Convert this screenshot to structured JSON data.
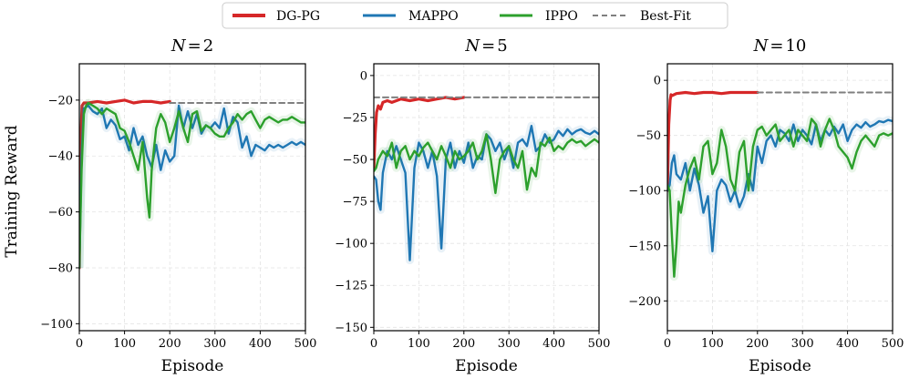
{
  "chart_data": {
    "type": "line",
    "ylabel": "Training Reward",
    "xlabel": "Episode",
    "legend": [
      {
        "name": "DG-PG",
        "color": "#d62728",
        "style": "solid"
      },
      {
        "name": "MAPPO",
        "color": "#1f77b4",
        "style": "solid"
      },
      {
        "name": "IPPO",
        "color": "#2ca02c",
        "style": "solid"
      },
      {
        "name": "Best-Fit",
        "color": "#7f7f7f",
        "style": "dashed"
      }
    ],
    "panels": [
      {
        "title": "N = 2",
        "title_var": "N",
        "title_op": "=",
        "title_num": "2",
        "xlim": [
          0,
          500
        ],
        "ylim": [
          -102.5,
          -7
        ],
        "xticks": [
          0,
          100,
          200,
          300,
          400,
          500
        ],
        "yticks": [
          -100,
          -80,
          -60,
          -40,
          -20
        ],
        "grid": true,
        "series": [
          {
            "name": "DG-PG",
            "x": [
              0,
              3,
              6,
              10,
              20,
              40,
              60,
              80,
              100,
              120,
              140,
              160,
              180,
              200
            ],
            "y": [
              -80,
              -35,
              -22,
              -21,
              -21,
              -20.5,
              -21,
              -20.5,
              -20,
              -21,
              -20.5,
              -20.5,
              -21,
              -20.5
            ]
          },
          {
            "name": "MAPPO",
            "x": [
              0,
              5,
              10,
              20,
              30,
              40,
              50,
              60,
              70,
              80,
              90,
              100,
              110,
              120,
              130,
              140,
              150,
              160,
              170,
              180,
              190,
              200,
              210,
              220,
              230,
              240,
              250,
              260,
              270,
              280,
              290,
              300,
              310,
              320,
              330,
              340,
              350,
              360,
              370,
              380,
              390,
              400,
              410,
              420,
              430,
              440,
              450,
              460,
              470,
              480,
              490,
              500
            ],
            "y": [
              -80,
              -40,
              -23,
              -22,
              -24,
              -25,
              -23,
              -30,
              -27,
              -29,
              -34,
              -33,
              -38,
              -30,
              -36,
              -33,
              -40,
              -44,
              -36,
              -45,
              -38,
              -42,
              -40,
              -22,
              -30,
              -24,
              -30,
              -25,
              -32,
              -29,
              -30,
              -28,
              -30,
              -23,
              -32,
              -26,
              -28,
              -37,
              -33,
              -40,
              -36,
              -37,
              -38,
              -36,
              -37,
              -36,
              -37,
              -36,
              -35,
              -36,
              -35,
              -36
            ]
          },
          {
            "name": "IPPO",
            "x": [
              0,
              5,
              10,
              15,
              20,
              30,
              40,
              50,
              60,
              70,
              80,
              90,
              100,
              110,
              120,
              130,
              140,
              150,
              155,
              160,
              170,
              180,
              190,
              200,
              210,
              220,
              230,
              240,
              250,
              260,
              270,
              280,
              290,
              300,
              310,
              320,
              330,
              340,
              350,
              360,
              370,
              380,
              390,
              400,
              410,
              420,
              430,
              440,
              450,
              460,
              470,
              480,
              490,
              500
            ],
            "y": [
              -80,
              -45,
              -25,
              -22,
              -21,
              -22,
              -23,
              -25,
              -23,
              -24,
              -25,
              -30,
              -31,
              -35,
              -40,
              -45,
              -35,
              -55,
              -62,
              -45,
              -30,
              -25,
              -28,
              -35,
              -30,
              -24,
              -30,
              -35,
              -25,
              -24,
              -31,
              -29,
              -30,
              -32,
              -33,
              -33,
              -30,
              -28,
              -25,
              -27,
              -25,
              -24,
              -27,
              -30,
              -27,
              -26,
              -27,
              -28,
              -27,
              -27,
              -26,
              -27,
              -28,
              -28
            ]
          },
          {
            "name": "Best-Fit",
            "x": [
              200,
              500
            ],
            "y": [
              -21,
              -21
            ]
          }
        ]
      },
      {
        "title": "N = 5",
        "title_var": "N",
        "title_op": "=",
        "title_num": "5",
        "xlim": [
          0,
          500
        ],
        "ylim": [
          -152,
          7
        ],
        "xticks": [
          0,
          100,
          200,
          300,
          400,
          500
        ],
        "yticks": [
          -150,
          -125,
          -100,
          -75,
          -50,
          -25,
          0
        ],
        "grid": true,
        "series": [
          {
            "name": "DG-PG",
            "x": [
              0,
              3,
              6,
              10,
              15,
              20,
              30,
              40,
              60,
              80,
              100,
              120,
              140,
              160,
              180,
              200
            ],
            "y": [
              -55,
              -35,
              -22,
              -18,
              -20,
              -16,
              -15,
              -16,
              -14,
              -15,
              -14,
              -15,
              -14,
              -13,
              -14,
              -13
            ]
          },
          {
            "name": "MAPPO",
            "x": [
              0,
              5,
              10,
              15,
              20,
              30,
              40,
              50,
              60,
              70,
              80,
              90,
              100,
              110,
              120,
              130,
              140,
              150,
              160,
              170,
              180,
              190,
              200,
              210,
              220,
              230,
              240,
              250,
              260,
              270,
              280,
              290,
              300,
              310,
              320,
              330,
              340,
              350,
              360,
              370,
              380,
              390,
              400,
              410,
              420,
              430,
              440,
              450,
              460,
              470,
              480,
              490,
              500
            ],
            "y": [
              -60,
              -62,
              -75,
              -80,
              -58,
              -45,
              -50,
              -42,
              -50,
              -58,
              -110,
              -55,
              -40,
              -45,
              -55,
              -45,
              -60,
              -103,
              -50,
              -40,
              -55,
              -45,
              -52,
              -40,
              -55,
              -48,
              -50,
              -35,
              -38,
              -45,
              -40,
              -50,
              -42,
              -55,
              -40,
              -38,
              -42,
              -30,
              -45,
              -42,
              -35,
              -40,
              -38,
              -33,
              -36,
              -32,
              -35,
              -33,
              -32,
              -34,
              -35,
              -33,
              -35
            ]
          },
          {
            "name": "IPPO",
            "x": [
              0,
              5,
              10,
              20,
              30,
              40,
              50,
              60,
              70,
              80,
              90,
              100,
              110,
              120,
              130,
              140,
              150,
              160,
              170,
              180,
              190,
              200,
              210,
              220,
              230,
              240,
              250,
              260,
              270,
              280,
              290,
              300,
              310,
              320,
              330,
              340,
              350,
              360,
              370,
              380,
              390,
              400,
              410,
              420,
              430,
              440,
              450,
              460,
              470,
              480,
              490,
              500
            ],
            "y": [
              -57,
              -55,
              -50,
              -45,
              -48,
              -40,
              -55,
              -45,
              -42,
              -50,
              -45,
              -48,
              -43,
              -40,
              -45,
              -50,
              -42,
              -48,
              -55,
              -45,
              -50,
              -48,
              -45,
              -40,
              -50,
              -45,
              -35,
              -50,
              -70,
              -50,
              -45,
              -42,
              -50,
              -55,
              -45,
              -68,
              -55,
              -60,
              -40,
              -42,
              -37,
              -45,
              -42,
              -44,
              -40,
              -38,
              -40,
              -39,
              -42,
              -40,
              -38,
              -40
            ]
          },
          {
            "name": "Best-Fit",
            "x": [
              0,
              500
            ],
            "y": [
              -13,
              -13
            ]
          }
        ]
      },
      {
        "title": "N = 10",
        "title_var": "N",
        "title_op": "=",
        "title_num": "10",
        "xlim": [
          0,
          500
        ],
        "ylim": [
          -227,
          15
        ],
        "xticks": [
          0,
          100,
          200,
          300,
          400,
          500
        ],
        "yticks": [
          -200,
          -150,
          -100,
          -50,
          0
        ],
        "grid": true,
        "series": [
          {
            "name": "DG-PG",
            "x": [
              0,
              3,
              6,
              8,
              10,
              20,
              40,
              60,
              80,
              100,
              120,
              140,
              160,
              180,
              200
            ],
            "y": [
              -100,
              -40,
              -18,
              -13,
              -14,
              -12,
              -11,
              -12,
              -11,
              -11,
              -12,
              -11,
              -11,
              -11,
              -11
            ]
          },
          {
            "name": "MAPPO",
            "x": [
              0,
              5,
              10,
              15,
              20,
              30,
              40,
              50,
              60,
              70,
              80,
              90,
              100,
              110,
              120,
              130,
              140,
              150,
              160,
              170,
              180,
              190,
              200,
              210,
              220,
              230,
              240,
              250,
              260,
              270,
              280,
              290,
              300,
              310,
              320,
              330,
              340,
              350,
              360,
              370,
              380,
              390,
              400,
              410,
              420,
              430,
              440,
              450,
              460,
              470,
              480,
              490,
              500
            ],
            "y": [
              -100,
              -95,
              -75,
              -68,
              -85,
              -90,
              -75,
              -100,
              -80,
              -95,
              -120,
              -105,
              -155,
              -100,
              -90,
              -95,
              -110,
              -100,
              -115,
              -105,
              -85,
              -100,
              -60,
              -75,
              -55,
              -50,
              -60,
              -45,
              -48,
              -55,
              -40,
              -55,
              -45,
              -50,
              -58,
              -40,
              -55,
              -45,
              -50,
              -42,
              -48,
              -40,
              -55,
              -45,
              -40,
              -43,
              -38,
              -42,
              -40,
              -37,
              -38,
              -36,
              -37
            ]
          },
          {
            "name": "IPPO",
            "x": [
              0,
              5,
              10,
              15,
              20,
              25,
              30,
              40,
              50,
              60,
              70,
              80,
              90,
              100,
              110,
              120,
              130,
              140,
              150,
              160,
              170,
              180,
              190,
              200,
              210,
              220,
              230,
              240,
              250,
              260,
              270,
              280,
              290,
              300,
              310,
              320,
              330,
              340,
              350,
              360,
              370,
              380,
              390,
              400,
              410,
              420,
              430,
              440,
              450,
              460,
              470,
              480,
              490,
              500
            ],
            "y": [
              -95,
              -100,
              -140,
              -178,
              -150,
              -110,
              -120,
              -95,
              -80,
              -70,
              -90,
              -60,
              -55,
              -85,
              -75,
              -45,
              -60,
              -90,
              -100,
              -65,
              -55,
              -100,
              -60,
              -45,
              -42,
              -50,
              -45,
              -40,
              -55,
              -50,
              -45,
              -60,
              -45,
              -50,
              -55,
              -35,
              -40,
              -60,
              -45,
              -35,
              -45,
              -60,
              -65,
              -70,
              -80,
              -65,
              -55,
              -50,
              -55,
              -60,
              -50,
              -48,
              -50,
              -48
            ]
          },
          {
            "name": "Best-Fit",
            "x": [
              200,
              500
            ],
            "y": [
              -11,
              -11
            ]
          }
        ]
      }
    ]
  }
}
